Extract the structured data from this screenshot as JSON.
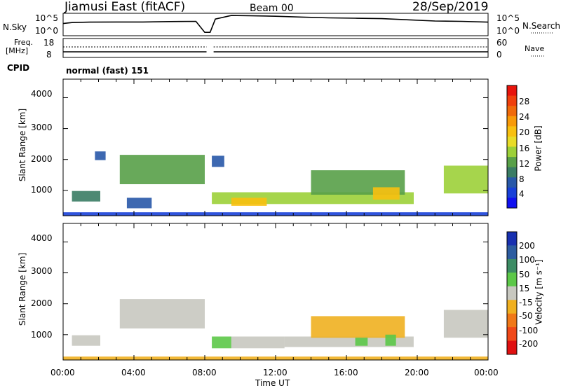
{
  "header": {
    "station": "Jiamusi East (fitACF)",
    "beam": "Beam 00",
    "date": "28/Sep/2019"
  },
  "status_panels": {
    "nsky": {
      "label": "N.Sky",
      "ticks": [
        "10^5",
        "10^0"
      ]
    },
    "nsearch": {
      "label": "N.Search",
      "ticks": [
        "10^5",
        "10^0"
      ]
    },
    "freq": {
      "label_line1": "Freq.",
      "label_line2": "[MHz]",
      "ticks": [
        "18",
        "8"
      ]
    },
    "nave": {
      "label": "Nave",
      "ticks": [
        "60",
        "0"
      ]
    },
    "cpid": {
      "label": "CPID",
      "value": "normal (fast) 151"
    }
  },
  "power_colorbar": {
    "label": "Power [dB]",
    "ticks": [
      "28",
      "24",
      "20",
      "16",
      "12",
      "8",
      "4"
    ],
    "colors": [
      "#e8140c",
      "#f0400c",
      "#f06a0a",
      "#f89a08",
      "#f8c010",
      "#e8dc28",
      "#9cd038",
      "#58a048",
      "#3a7c64",
      "#2858a8",
      "#1840d8",
      "#1010f0"
    ]
  },
  "velocity_colorbar": {
    "label": "Velocity [m s⁻¹]",
    "ticks": [
      "200",
      "100",
      "50",
      "15",
      "-15",
      "-50",
      "-100",
      "-200"
    ],
    "colors": [
      "#1830b0",
      "#2c5ca0",
      "#3c8c64",
      "#5cc848",
      "#c8c8c0",
      "#f0b020",
      "#f07818",
      "#f04818",
      "#e01010"
    ]
  },
  "axes": {
    "ylabel": "Slant Range [km]",
    "yticks": [
      "4000",
      "3000",
      "2000",
      "1000"
    ],
    "xticks": [
      "00:00",
      "04:00",
      "08:00",
      "12:00",
      "16:00",
      "20:00",
      "00:00"
    ],
    "xlabel": "Time UT"
  },
  "chart_data": [
    {
      "type": "line",
      "panel": "N.Sky / N.Search",
      "x_units": "hours UT",
      "x": [
        0,
        0.5,
        1.5,
        3,
        4.5,
        6,
        7.5,
        8,
        8.3,
        8.6,
        9.5,
        10.5,
        12,
        13.5,
        15,
        16.5,
        18,
        19.5,
        21,
        22.5,
        24
      ],
      "y": [
        0.55,
        0.6,
        0.62,
        0.63,
        0.63,
        0.65,
        0.66,
        0.1,
        0.1,
        0.78,
        0.96,
        0.95,
        0.92,
        0.88,
        0.84,
        0.82,
        0.8,
        0.74,
        0.68,
        0.66,
        0.62
      ],
      "ylim_log10": [
        0,
        5
      ],
      "ytick_labels": [
        "10^0",
        "10^5"
      ]
    },
    {
      "type": "heatmap",
      "panel": "Power",
      "xlabel": "Time UT",
      "ylabel": "Slant Range [km]",
      "xlim_hours": [
        0,
        24
      ],
      "ylim_km": [
        180,
        4600
      ],
      "colorbar_label": "Power [dB]",
      "bands": [
        {
          "t0": 0.5,
          "t1": 2.1,
          "r0": 640,
          "r1": 980,
          "v": 7
        },
        {
          "t0": 1.8,
          "t1": 2.4,
          "r0": 1980,
          "r1": 2260,
          "v": 6
        },
        {
          "t0": 3.2,
          "t1": 8.0,
          "r0": 1200,
          "r1": 2150,
          "v": 10
        },
        {
          "t0": 3.6,
          "t1": 5.0,
          "r0": 420,
          "r1": 760,
          "v": 5
        },
        {
          "t0": 8.4,
          "t1": 9.1,
          "r0": 1760,
          "r1": 2120,
          "v": 6
        },
        {
          "t0": 8.4,
          "t1": 19.8,
          "r0": 560,
          "r1": 940,
          "v": 15
        },
        {
          "t0": 9.5,
          "t1": 11.5,
          "r0": 500,
          "r1": 760,
          "v": 18
        },
        {
          "t0": 14.0,
          "t1": 19.3,
          "r0": 860,
          "r1": 1650,
          "v": 12
        },
        {
          "t0": 17.5,
          "t1": 19.0,
          "r0": 700,
          "r1": 1100,
          "v": 20
        },
        {
          "t0": 21.5,
          "t1": 24.0,
          "r0": 900,
          "r1": 1800,
          "v": 14
        },
        {
          "t0": 0.0,
          "t1": 24.0,
          "r0": 190,
          "r1": 290,
          "v": 4
        }
      ]
    },
    {
      "type": "heatmap",
      "panel": "Velocity",
      "xlabel": "Time UT",
      "ylabel": "Slant Range [km]",
      "xlim_hours": [
        0,
        24
      ],
      "ylim_km": [
        180,
        4600
      ],
      "colorbar_label": "Velocity [m s⁻¹]",
      "bands": [
        {
          "t0": 0.5,
          "t1": 2.1,
          "r0": 640,
          "r1": 980,
          "v": 0
        },
        {
          "t0": 3.2,
          "t1": 8.0,
          "r0": 1200,
          "r1": 2150,
          "v": -5
        },
        {
          "t0": 8.4,
          "t1": 9.5,
          "r0": 560,
          "r1": 940,
          "v": 30
        },
        {
          "t0": 9.5,
          "t1": 12.5,
          "r0": 560,
          "r1": 940,
          "v": -10
        },
        {
          "t0": 12.5,
          "t1": 19.8,
          "r0": 600,
          "r1": 940,
          "v": -5
        },
        {
          "t0": 14.0,
          "t1": 19.3,
          "r0": 900,
          "r1": 1600,
          "v": -40
        },
        {
          "t0": 16.5,
          "t1": 17.2,
          "r0": 640,
          "r1": 900,
          "v": 30
        },
        {
          "t0": 18.2,
          "t1": 18.8,
          "r0": 640,
          "r1": 1000,
          "v": 30
        },
        {
          "t0": 21.5,
          "t1": 24.0,
          "r0": 900,
          "r1": 1800,
          "v": -5
        },
        {
          "t0": 0.0,
          "t1": 24.0,
          "r0": 190,
          "r1": 290,
          "v": -30
        }
      ]
    }
  ]
}
